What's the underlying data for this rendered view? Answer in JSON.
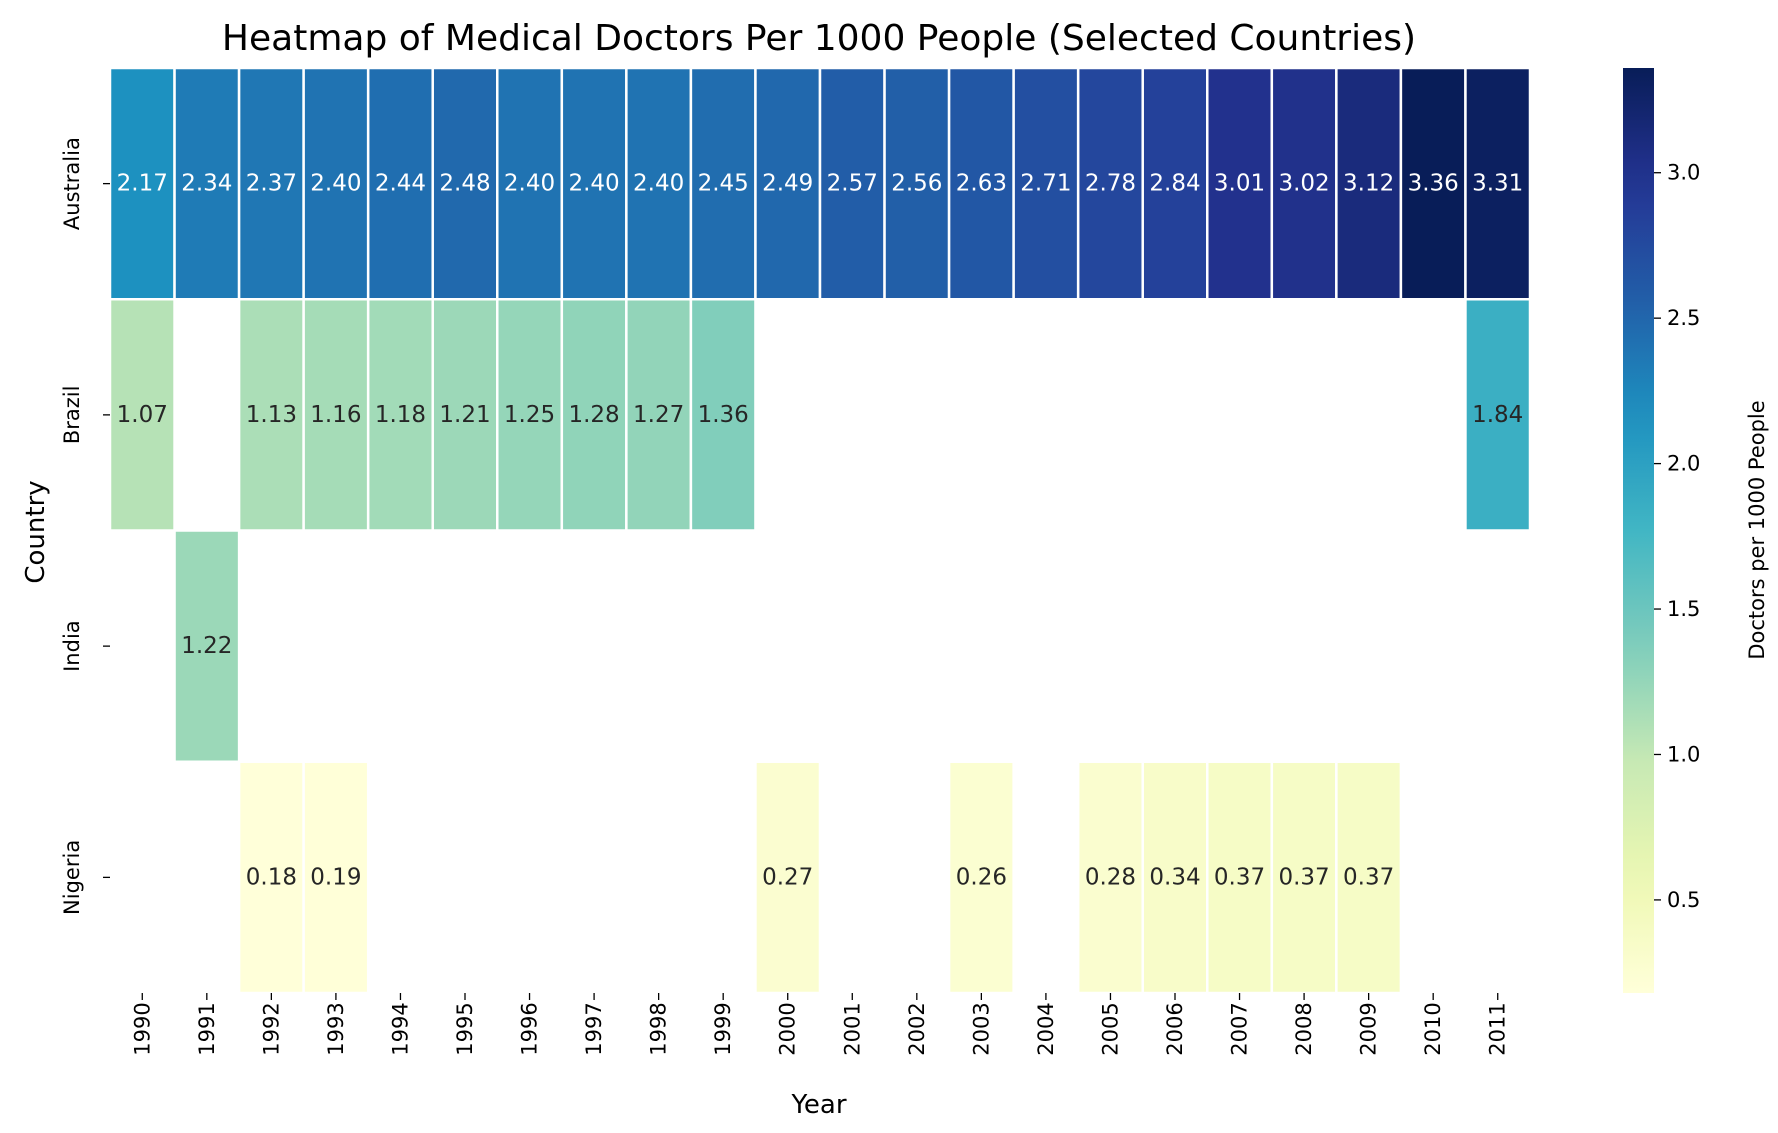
{
  "chart_data": {
    "type": "heatmap",
    "title": "Heatmap of Medical Doctors Per 1000 People (Selected Countries)",
    "xlabel": "Year",
    "ylabel": "Country",
    "colorbar_label": "Doctors per 1000 People",
    "colormap": "YlGnBu",
    "vmin": 0.18,
    "vmax": 3.36,
    "colorbar_ticks": [
      "0.5",
      "1.0",
      "1.5",
      "2.0",
      "2.5",
      "3.0"
    ],
    "x": [
      "1990",
      "1991",
      "1992",
      "1993",
      "1994",
      "1995",
      "1996",
      "1997",
      "1998",
      "1999",
      "2000",
      "2001",
      "2002",
      "2003",
      "2004",
      "2005",
      "2006",
      "2007",
      "2008",
      "2009",
      "2010",
      "2011"
    ],
    "y": [
      "Australia",
      "Brazil",
      "India",
      "Nigeria"
    ],
    "values": [
      [
        2.17,
        2.34,
        2.37,
        2.4,
        2.44,
        2.48,
        2.4,
        2.4,
        2.4,
        2.45,
        2.49,
        2.57,
        2.56,
        2.63,
        2.71,
        2.78,
        2.84,
        3.01,
        3.02,
        3.12,
        3.36,
        3.31
      ],
      [
        1.07,
        null,
        1.13,
        1.16,
        1.18,
        1.21,
        1.25,
        1.28,
        1.27,
        1.36,
        null,
        null,
        null,
        null,
        null,
        null,
        null,
        null,
        null,
        null,
        null,
        1.84
      ],
      [
        null,
        1.22,
        null,
        null,
        null,
        null,
        null,
        null,
        null,
        null,
        null,
        null,
        null,
        null,
        null,
        null,
        null,
        null,
        null,
        null,
        null,
        null
      ],
      [
        null,
        null,
        0.18,
        0.19,
        null,
        null,
        null,
        null,
        null,
        null,
        0.27,
        null,
        null,
        0.26,
        null,
        0.28,
        0.34,
        0.37,
        0.37,
        0.37,
        null,
        null
      ]
    ],
    "value_format": "2 decimals",
    "grid": false
  }
}
